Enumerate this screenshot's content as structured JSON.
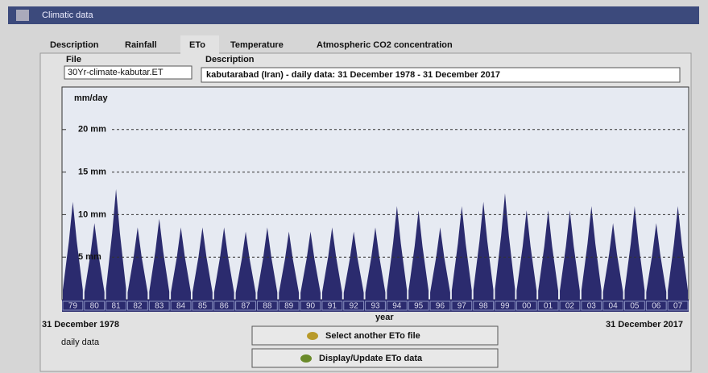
{
  "window": {
    "title": "Climatic data"
  },
  "tabs": [
    "Description",
    "Rainfall",
    "ETo",
    "Temperature",
    "Atmospheric CO2 concentration"
  ],
  "fields": {
    "file_label": "File",
    "file_value": "30Yr-climate-kabutar.ET",
    "description_label": "Description",
    "description_value": "kabutarabad (Iran) - daily data: 31 December 1978 - 31 December 2017"
  },
  "chart_data": {
    "type": "bar",
    "y_label": "mm/day",
    "x_label": "year",
    "categories": [
      "79",
      "80",
      "81",
      "82",
      "83",
      "84",
      "85",
      "86",
      "87",
      "88",
      "89",
      "90",
      "91",
      "92",
      "93",
      "94",
      "95",
      "96",
      "97",
      "98",
      "99",
      "00",
      "01",
      "02",
      "03",
      "04",
      "05",
      "06",
      "07"
    ],
    "values": [
      11.5,
      9,
      13,
      8.5,
      9.5,
      8.5,
      8.5,
      8.5,
      8,
      8.5,
      8,
      8,
      8.5,
      8,
      8.5,
      11,
      10.5,
      8.5,
      11,
      11.5,
      12.5,
      10.5,
      10.5,
      10.5,
      11,
      9,
      11,
      9,
      11
    ],
    "color": "#2b2b6e",
    "ylim": [
      0,
      25
    ],
    "yticks": [
      {
        "value": 5,
        "label": "5 mm"
      },
      {
        "value": 10,
        "label": "10 mm"
      },
      {
        "value": 15,
        "label": "15 mm"
      },
      {
        "value": 20,
        "label": "20 mm"
      }
    ],
    "grid": true,
    "start_date": "31 December 1978",
    "end_date": "31 December 2017",
    "resolution": "daily data"
  },
  "buttons": [
    "Select another ETo file",
    "Display/Update ETo data"
  ]
}
